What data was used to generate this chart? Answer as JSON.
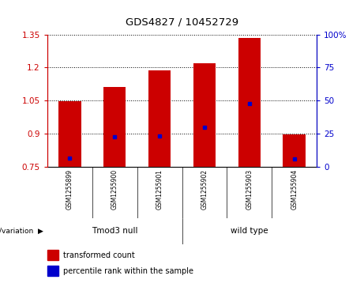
{
  "title": "GDS4827 / 10452729",
  "samples": [
    "GSM1255899",
    "GSM1255900",
    "GSM1255901",
    "GSM1255902",
    "GSM1255903",
    "GSM1255904"
  ],
  "bar_tops": [
    1.047,
    1.11,
    1.185,
    1.22,
    1.335,
    0.895
  ],
  "bar_base": 0.75,
  "blue_dot_values": [
    0.787,
    0.885,
    0.887,
    0.927,
    1.035,
    0.783
  ],
  "ylim": [
    0.75,
    1.35
  ],
  "yticks_left": [
    0.75,
    0.9,
    1.05,
    1.2,
    1.35
  ],
  "yticks_right": [
    0,
    25,
    50,
    75,
    100
  ],
  "bar_color": "#cc0000",
  "blue_color": "#0000cc",
  "bg_color": "#d8d8d8",
  "plot_bg": "#ffffff",
  "green_color": "#77dd77",
  "groups": [
    {
      "label": "Tmod3 null",
      "indices": [
        0,
        1,
        2
      ]
    },
    {
      "label": "wild type",
      "indices": [
        3,
        4,
        5
      ]
    }
  ],
  "group_label_prefix": "genotype/variation",
  "legend_items": [
    {
      "label": "transformed count",
      "color": "#cc0000"
    },
    {
      "label": "percentile rank within the sample",
      "color": "#0000cc"
    }
  ]
}
